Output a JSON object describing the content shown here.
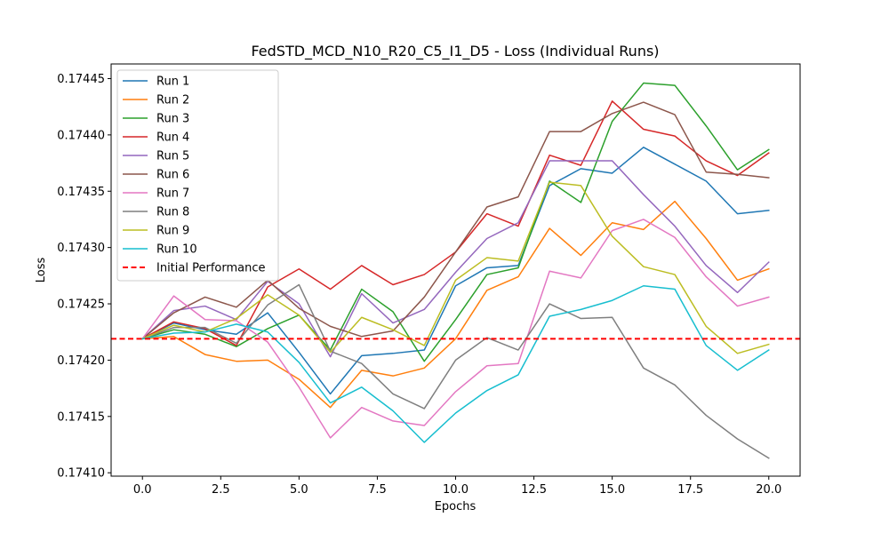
{
  "chart_data": {
    "type": "line",
    "title": "FedSTD_MCD_N10_R20_C5_I1_D5 - Loss (Individual Runs)",
    "xlabel": "Epochs",
    "ylabel": "Loss",
    "xlim": [
      -1.0,
      21.0
    ],
    "ylim": [
      0.174097,
      0.174463
    ],
    "xticks": [
      0.0,
      2.5,
      5.0,
      7.5,
      10.0,
      12.5,
      15.0,
      17.5,
      20.0
    ],
    "xtick_labels": [
      "0.0",
      "2.5",
      "5.0",
      "7.5",
      "10.0",
      "12.5",
      "15.0",
      "17.5",
      "20.0"
    ],
    "yticks": [
      0.1741,
      0.17415,
      0.1742,
      0.17425,
      0.1743,
      0.17435,
      0.1744,
      0.17445
    ],
    "ytick_labels": [
      "0.17410",
      "0.17415",
      "0.17420",
      "0.17425",
      "0.17430",
      "0.17435",
      "0.17440",
      "0.17445"
    ],
    "grid": false,
    "legend_position": "upper-left",
    "x": [
      0,
      1,
      2,
      3,
      4,
      5,
      6,
      7,
      8,
      9,
      10,
      11,
      12,
      13,
      14,
      15,
      16,
      17,
      18,
      19,
      20
    ],
    "series": [
      {
        "name": "Run 1",
        "color": "#1f77b4",
        "values": [
          0.174219,
          0.174233,
          0.174227,
          0.174223,
          0.174242,
          0.174207,
          0.17417,
          0.174204,
          0.174206,
          0.174209,
          0.174266,
          0.174282,
          0.174284,
          0.174355,
          0.17437,
          0.174366,
          0.174389,
          0.174374,
          0.174359,
          0.17433,
          0.174333
        ]
      },
      {
        "name": "Run 2",
        "color": "#ff7f0e",
        "values": [
          0.174219,
          0.174221,
          0.174205,
          0.174199,
          0.1742,
          0.174183,
          0.174158,
          0.174191,
          0.174186,
          0.174193,
          0.174219,
          0.174262,
          0.174274,
          0.174317,
          0.174293,
          0.174322,
          0.174316,
          0.174341,
          0.174308,
          0.174271,
          0.174281
        ]
      },
      {
        "name": "Run 3",
        "color": "#2ca02c",
        "values": [
          0.174219,
          0.174227,
          0.174223,
          0.174212,
          0.174228,
          0.17424,
          0.174209,
          0.174263,
          0.174243,
          0.174199,
          0.174236,
          0.174276,
          0.174282,
          0.174359,
          0.17434,
          0.174412,
          0.174446,
          0.174444,
          0.174408,
          0.174369,
          0.174387
        ]
      },
      {
        "name": "Run 4",
        "color": "#d62728",
        "values": [
          0.174219,
          0.174234,
          0.174228,
          0.174213,
          0.174265,
          0.174281,
          0.174263,
          0.174284,
          0.174267,
          0.174276,
          0.174296,
          0.17433,
          0.174319,
          0.174382,
          0.174373,
          0.17443,
          0.174405,
          0.174399,
          0.174377,
          0.174364,
          0.174384
        ]
      },
      {
        "name": "Run 5",
        "color": "#9467bd",
        "values": [
          0.174219,
          0.174244,
          0.174248,
          0.174236,
          0.17427,
          0.17425,
          0.174203,
          0.174259,
          0.174233,
          0.174245,
          0.174278,
          0.174308,
          0.174322,
          0.174377,
          0.174377,
          0.174377,
          0.174347,
          0.174319,
          0.174284,
          0.17426,
          0.174287
        ]
      },
      {
        "name": "Run 6",
        "color": "#8c564b",
        "values": [
          0.174219,
          0.174242,
          0.174256,
          0.174247,
          0.174271,
          0.174246,
          0.17423,
          0.174221,
          0.174226,
          0.174256,
          0.174296,
          0.174336,
          0.174345,
          0.174403,
          0.174403,
          0.174419,
          0.174429,
          0.174418,
          0.174367,
          0.174365,
          0.174362
        ]
      },
      {
        "name": "Run 7",
        "color": "#e377c2",
        "values": [
          0.174219,
          0.174257,
          0.174236,
          0.174235,
          0.174216,
          0.174176,
          0.174131,
          0.174158,
          0.174146,
          0.174142,
          0.174172,
          0.174195,
          0.174197,
          0.174279,
          0.174273,
          0.174315,
          0.174325,
          0.174309,
          0.174274,
          0.174248,
          0.174256
        ]
      },
      {
        "name": "Run 8",
        "color": "#7f7f7f",
        "values": [
          0.174219,
          0.174229,
          0.174229,
          0.174215,
          0.174249,
          0.174267,
          0.174208,
          0.174197,
          0.17417,
          0.174157,
          0.1742,
          0.17422,
          0.174209,
          0.17425,
          0.174237,
          0.174238,
          0.174193,
          0.174178,
          0.174151,
          0.17413,
          0.174113
        ]
      },
      {
        "name": "Run 9",
        "color": "#bcbd22",
        "values": [
          0.174219,
          0.174231,
          0.174225,
          0.174237,
          0.174258,
          0.17424,
          0.174207,
          0.174238,
          0.174227,
          0.174213,
          0.174271,
          0.174291,
          0.174288,
          0.174358,
          0.174355,
          0.17431,
          0.174283,
          0.174276,
          0.17423,
          0.174206,
          0.174214
        ]
      },
      {
        "name": "Run 10",
        "color": "#17becf",
        "values": [
          0.174219,
          0.174224,
          0.174225,
          0.174232,
          0.174225,
          0.174198,
          0.174162,
          0.174176,
          0.174155,
          0.174127,
          0.174153,
          0.174173,
          0.174187,
          0.174239,
          0.174245,
          0.174253,
          0.174266,
          0.174263,
          0.174213,
          0.174191,
          0.174209
        ]
      }
    ],
    "reference_line": {
      "name": "Initial Performance",
      "value": 0.174219,
      "color": "#ff0000",
      "style": "dashed"
    }
  }
}
